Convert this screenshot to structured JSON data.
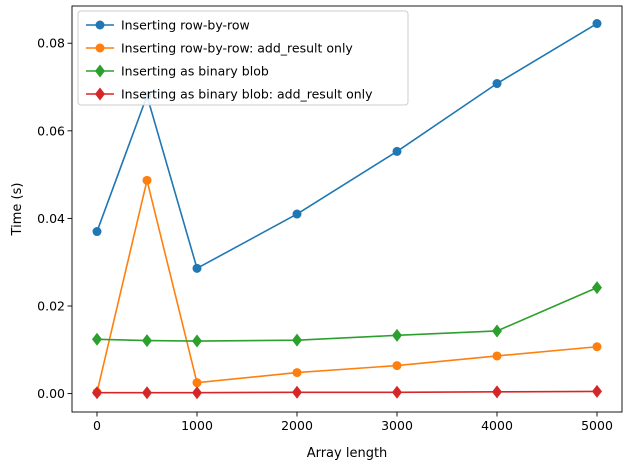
{
  "chart_data": {
    "type": "line",
    "title": "",
    "xlabel": "Array length",
    "ylabel": "Time (s)",
    "xlim": [
      -250,
      5250
    ],
    "ylim": [
      -0.0042,
      0.0885
    ],
    "xticks": [
      0,
      1000,
      2000,
      3000,
      4000,
      5000
    ],
    "xtick_labels": [
      "0",
      "1000",
      "2000",
      "3000",
      "4000",
      "5000"
    ],
    "yticks": [
      0,
      0.02,
      0.04,
      0.06,
      0.08
    ],
    "ytick_labels": [
      "0.00",
      "0.02",
      "0.04",
      "0.06",
      "0.08"
    ],
    "grid": false,
    "legend_position": "top-left",
    "x": [
      0,
      500,
      1000,
      2000,
      3000,
      4000,
      5000
    ],
    "series": [
      {
        "name": "Inserting row-by-row",
        "color": "#1f77b4",
        "marker": "circle",
        "values": [
          0.037,
          0.068,
          0.0286,
          0.041,
          0.0553,
          0.0708,
          0.0845
        ]
      },
      {
        "name": "Inserting row-by-row: add_result only",
        "color": "#ff7f0e",
        "marker": "circle",
        "values": [
          0.0003,
          0.0487,
          0.0025,
          0.0048,
          0.0064,
          0.0086,
          0.0107
        ]
      },
      {
        "name": "Inserting as binary blob",
        "color": "#2ca02c",
        "marker": "diamond",
        "values": [
          0.0124,
          0.0121,
          0.012,
          0.0122,
          0.0133,
          0.0143,
          0.0242
        ]
      },
      {
        "name": "Inserting as binary blob: add_result only",
        "color": "#d62728",
        "marker": "diamond",
        "values": [
          0.0002,
          0.0002,
          0.0002,
          0.0003,
          0.0003,
          0.0004,
          0.0005
        ]
      }
    ]
  }
}
